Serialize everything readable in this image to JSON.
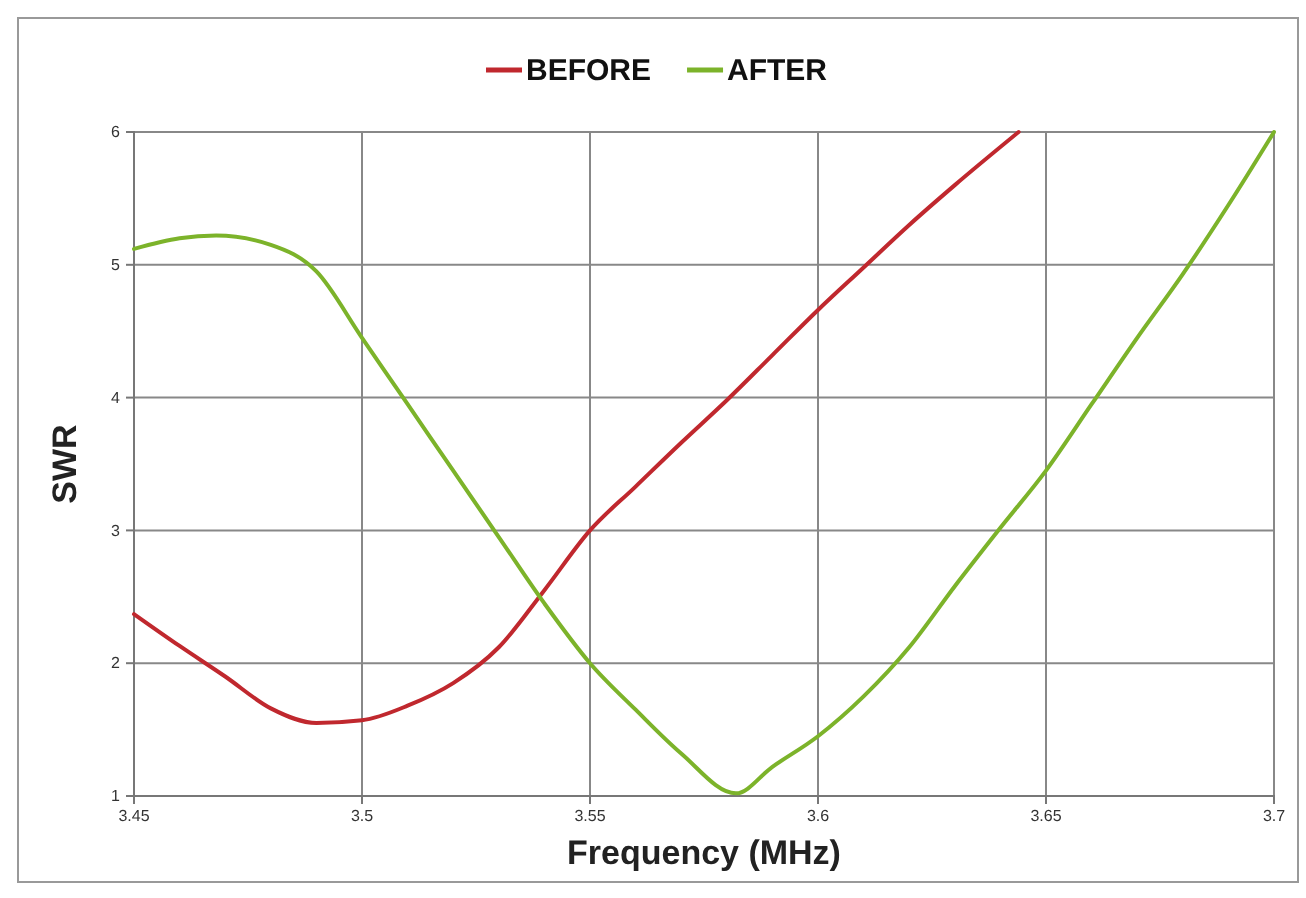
{
  "chart_data": {
    "type": "line",
    "xlabel": "Frequency (MHz)",
    "ylabel": "SWR",
    "xlim": [
      3.45,
      3.7
    ],
    "xticks": [
      3.45,
      3.5,
      3.55,
      3.6,
      3.65,
      3.7
    ],
    "ylim": [
      1,
      6
    ],
    "yticks": [
      1,
      2,
      3,
      4,
      5,
      6
    ],
    "grid": true,
    "legend": "top",
    "marker": "none",
    "line_style": "solid",
    "series": [
      {
        "name": "BEFORE",
        "color": "#c0282e",
        "x": [
          3.45,
          3.46,
          3.47,
          3.48,
          3.49,
          3.5,
          3.51,
          3.52,
          3.53,
          3.54,
          3.55,
          3.56,
          3.57,
          3.58,
          3.59,
          3.6,
          3.61,
          3.62,
          3.63,
          3.644
        ],
        "values": [
          2.37,
          2.13,
          1.9,
          1.66,
          1.55,
          1.57,
          1.68,
          1.85,
          2.12,
          2.55,
          3.0,
          3.33,
          3.66,
          3.98,
          4.32,
          4.66,
          4.98,
          5.3,
          5.6,
          6.0
        ]
      },
      {
        "name": "AFTER",
        "color": "#7cb32a",
        "x": [
          3.45,
          3.46,
          3.468,
          3.48,
          3.49,
          3.5,
          3.51,
          3.52,
          3.53,
          3.54,
          3.55,
          3.56,
          3.57,
          3.582,
          3.59,
          3.6,
          3.61,
          3.62,
          3.63,
          3.64,
          3.65,
          3.66,
          3.67,
          3.68,
          3.69,
          3.7
        ],
        "values": [
          5.12,
          5.2,
          5.22,
          5.15,
          4.95,
          4.45,
          3.95,
          3.45,
          2.95,
          2.45,
          2.0,
          1.65,
          1.32,
          1.02,
          1.22,
          1.45,
          1.75,
          2.12,
          2.58,
          3.02,
          3.45,
          3.95,
          4.45,
          4.93,
          5.45,
          6.0
        ]
      }
    ]
  }
}
